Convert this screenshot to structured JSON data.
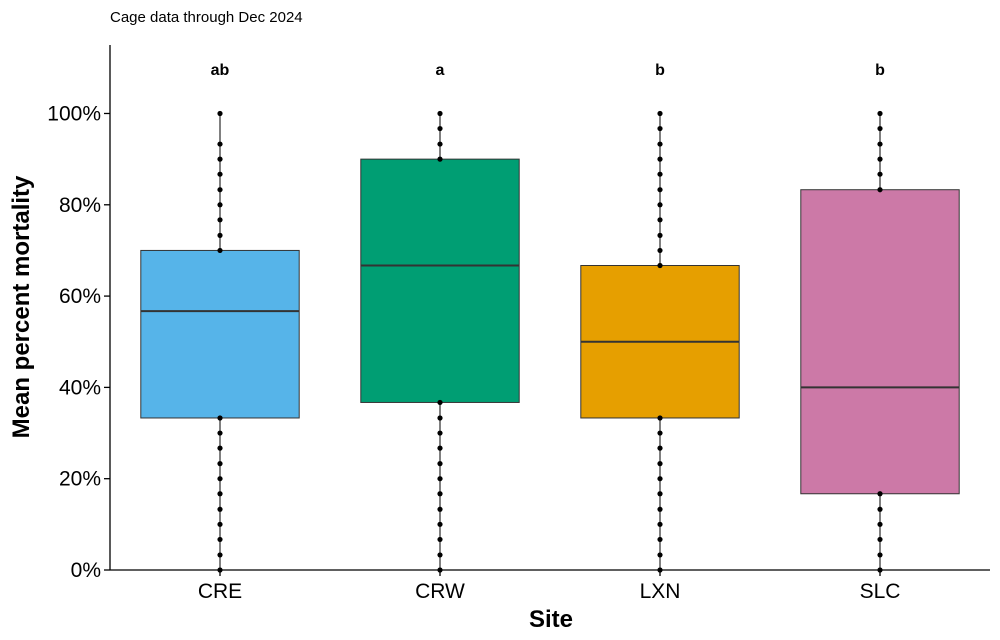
{
  "chart_data": {
    "type": "box",
    "subtitle": "Cage data through Dec 2024",
    "xlabel": "Site",
    "ylabel": "Mean percent mortality",
    "ylim": [
      0,
      115
    ],
    "yticks": [
      0,
      20,
      40,
      60,
      80,
      100
    ],
    "ytick_labels": [
      "0%",
      "20%",
      "40%",
      "60%",
      "80%",
      "100%"
    ],
    "grid": false,
    "legend": "none",
    "categories": [
      "CRE",
      "CRW",
      "LXN",
      "SLC"
    ],
    "boxes": [
      {
        "category": "CRE",
        "color": "#56B4E9",
        "significance": "ab",
        "min": 0,
        "q1": 33.3,
        "median": 56.7,
        "q3": 70,
        "max": 100,
        "points": [
          0,
          3.3,
          6.7,
          10,
          13.3,
          16.7,
          20,
          23.3,
          26.7,
          30,
          33.3,
          70,
          73.3,
          76.7,
          80,
          83.3,
          86.7,
          90,
          93.3,
          100
        ]
      },
      {
        "category": "CRW",
        "color": "#009E73",
        "significance": "a",
        "min": 0,
        "q1": 36.7,
        "median": 66.7,
        "q3": 90,
        "max": 100,
        "points": [
          0,
          3.3,
          6.7,
          10,
          13.3,
          16.7,
          20,
          23.3,
          26.7,
          30,
          33.3,
          36.7,
          90,
          93.3,
          96.7,
          100
        ]
      },
      {
        "category": "LXN",
        "color": "#E69F00",
        "significance": "b",
        "min": 0,
        "q1": 33.3,
        "median": 50,
        "q3": 66.7,
        "max": 100,
        "points": [
          0,
          3.3,
          6.7,
          10,
          13.3,
          16.7,
          20,
          23.3,
          26.7,
          30,
          33.3,
          66.7,
          70,
          73.3,
          76.7,
          80,
          83.3,
          86.7,
          90,
          93.3,
          96.7,
          100
        ]
      },
      {
        "category": "SLC",
        "color": "#CC79A7",
        "significance": "b",
        "min": 0,
        "q1": 16.7,
        "median": 40,
        "q3": 83.3,
        "max": 100,
        "points": [
          0,
          3.3,
          6.7,
          10,
          13.3,
          16.7,
          83.3,
          86.7,
          90,
          93.3,
          96.7,
          100
        ]
      }
    ]
  }
}
